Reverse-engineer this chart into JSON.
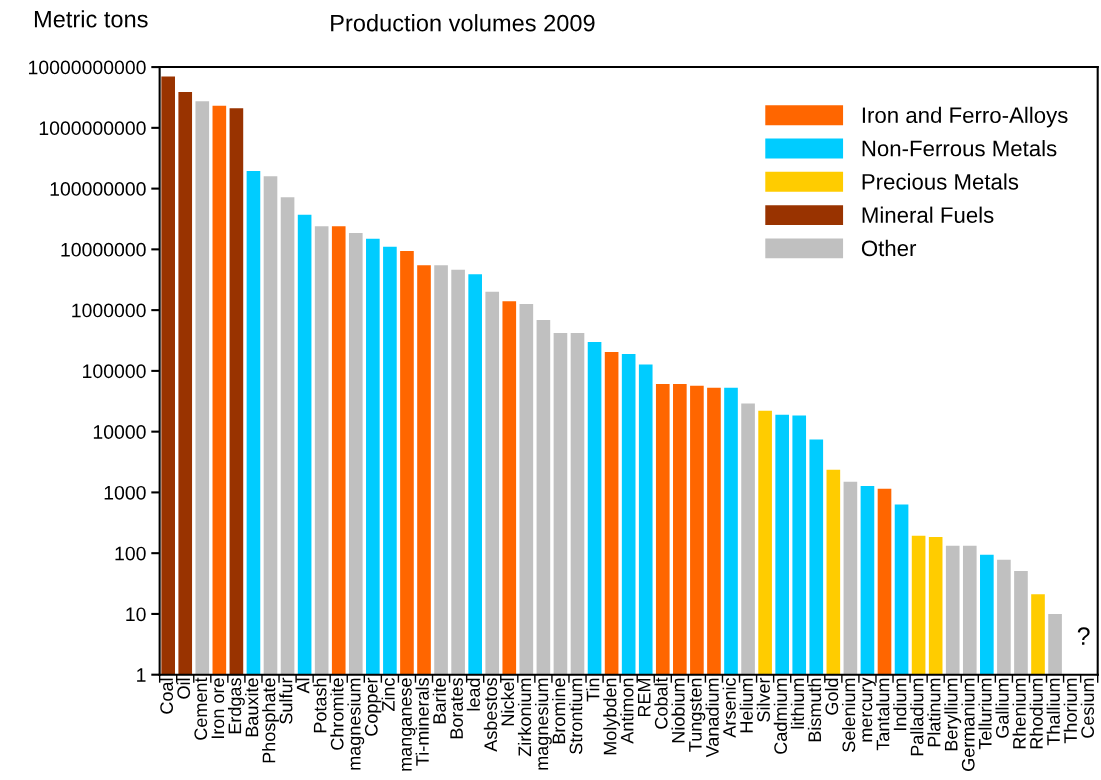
{
  "chart_data": {
    "type": "bar",
    "title": "Production volumes 2009",
    "ylabel": "Metric tons",
    "categories": [
      "Coal",
      "Oil",
      "Cement",
      "Iron ore",
      "Erdgas",
      "Bauxite",
      "Phosphate",
      "Sulfur",
      "Al",
      "Potash",
      "Chromite",
      "magnesium",
      "Copper",
      "Zinc",
      "manganese",
      "Ti-minerals",
      "Barite",
      "Borates",
      "lead",
      "Asbestos",
      "Nickel",
      "Zirkonium",
      "magnesium",
      "Bromine",
      "Strontium",
      "Tin",
      "Molybden",
      "Antimon",
      "REM",
      "Cobalt",
      "Niobium",
      "Tungsten",
      "Vanadium",
      "Arsenic",
      "Helium",
      "Silver",
      "Cadmium",
      "lithium",
      "Bismuth",
      "Gold",
      "Selenium",
      "mercury",
      "Tantalum",
      "Indium",
      "Palladium",
      "Platinum",
      "Beryllium",
      "Germanium",
      "Tellurium",
      "Gallium",
      "Rhenium",
      "Rhodium",
      "Thallium",
      "Thorium",
      "Cesium"
    ],
    "series": [
      {
        "name": "Iron and Ferro-Alloys",
        "color": "#ff6600",
        "values": [
          null,
          null,
          null,
          2300000000,
          null,
          null,
          null,
          null,
          null,
          null,
          24000000,
          null,
          null,
          null,
          9400000,
          5500000,
          null,
          null,
          null,
          null,
          1400000,
          null,
          null,
          null,
          null,
          null,
          205000,
          null,
          null,
          61000,
          61000,
          57000,
          53000,
          null,
          null,
          null,
          null,
          null,
          null,
          null,
          null,
          null,
          1150,
          null,
          null,
          null,
          null,
          null,
          null,
          null,
          null,
          null,
          null,
          null,
          null
        ]
      },
      {
        "name": "Non-Ferrous Metals",
        "color": "#00ccff",
        "values": [
          null,
          null,
          null,
          null,
          null,
          195000000,
          null,
          null,
          37000000,
          null,
          null,
          null,
          15000000,
          11000000,
          null,
          null,
          null,
          null,
          3900000,
          null,
          null,
          null,
          null,
          null,
          null,
          300000,
          null,
          190000,
          127000,
          null,
          null,
          null,
          null,
          53000,
          null,
          null,
          19000,
          18500,
          7400,
          null,
          null,
          1280,
          null,
          630,
          null,
          null,
          null,
          null,
          94,
          null,
          null,
          null,
          null,
          null,
          null
        ]
      },
      {
        "name": "Precious Metals",
        "color": "#ffcc00",
        "values": [
          null,
          null,
          null,
          null,
          null,
          null,
          null,
          null,
          null,
          null,
          null,
          null,
          null,
          null,
          null,
          null,
          null,
          null,
          null,
          null,
          null,
          null,
          null,
          null,
          null,
          null,
          null,
          null,
          null,
          null,
          null,
          null,
          null,
          null,
          null,
          22000,
          null,
          null,
          null,
          2350,
          null,
          null,
          null,
          null,
          194,
          185,
          null,
          null,
          null,
          null,
          null,
          21,
          null,
          null,
          null
        ]
      },
      {
        "name": "Mineral Fuels",
        "color": "#993300",
        "values": [
          7000000000,
          3900000000,
          null,
          null,
          2100000000,
          null,
          null,
          null,
          null,
          null,
          null,
          null,
          null,
          null,
          null,
          null,
          null,
          null,
          null,
          null,
          null,
          null,
          null,
          null,
          null,
          null,
          null,
          null,
          null,
          null,
          null,
          null,
          null,
          null,
          null,
          null,
          null,
          null,
          null,
          null,
          null,
          null,
          null,
          null,
          null,
          null,
          null,
          null,
          null,
          null,
          null,
          null,
          null,
          null,
          null
        ]
      },
      {
        "name": "Other",
        "color": "#c0c0c0",
        "values": [
          null,
          null,
          2750000000,
          null,
          null,
          null,
          160000000,
          72000000,
          null,
          24000000,
          null,
          18600000,
          null,
          null,
          null,
          null,
          5500000,
          4600000,
          null,
          2000000,
          null,
          1260000,
          690000,
          420000,
          420000,
          null,
          null,
          null,
          null,
          null,
          null,
          null,
          null,
          null,
          29000,
          null,
          null,
          null,
          null,
          null,
          1500,
          null,
          null,
          null,
          null,
          null,
          133,
          133,
          null,
          78,
          51,
          null,
          10,
          null,
          null
        ]
      }
    ],
    "log": true,
    "ylim": [
      1,
      10000000000
    ],
    "yticks": [
      1,
      10,
      100,
      1000,
      10000,
      100000,
      1000000,
      10000000,
      100000000,
      1000000000,
      10000000000
    ],
    "grid": false,
    "legend": "top right",
    "annotations": [
      "?"
    ]
  }
}
